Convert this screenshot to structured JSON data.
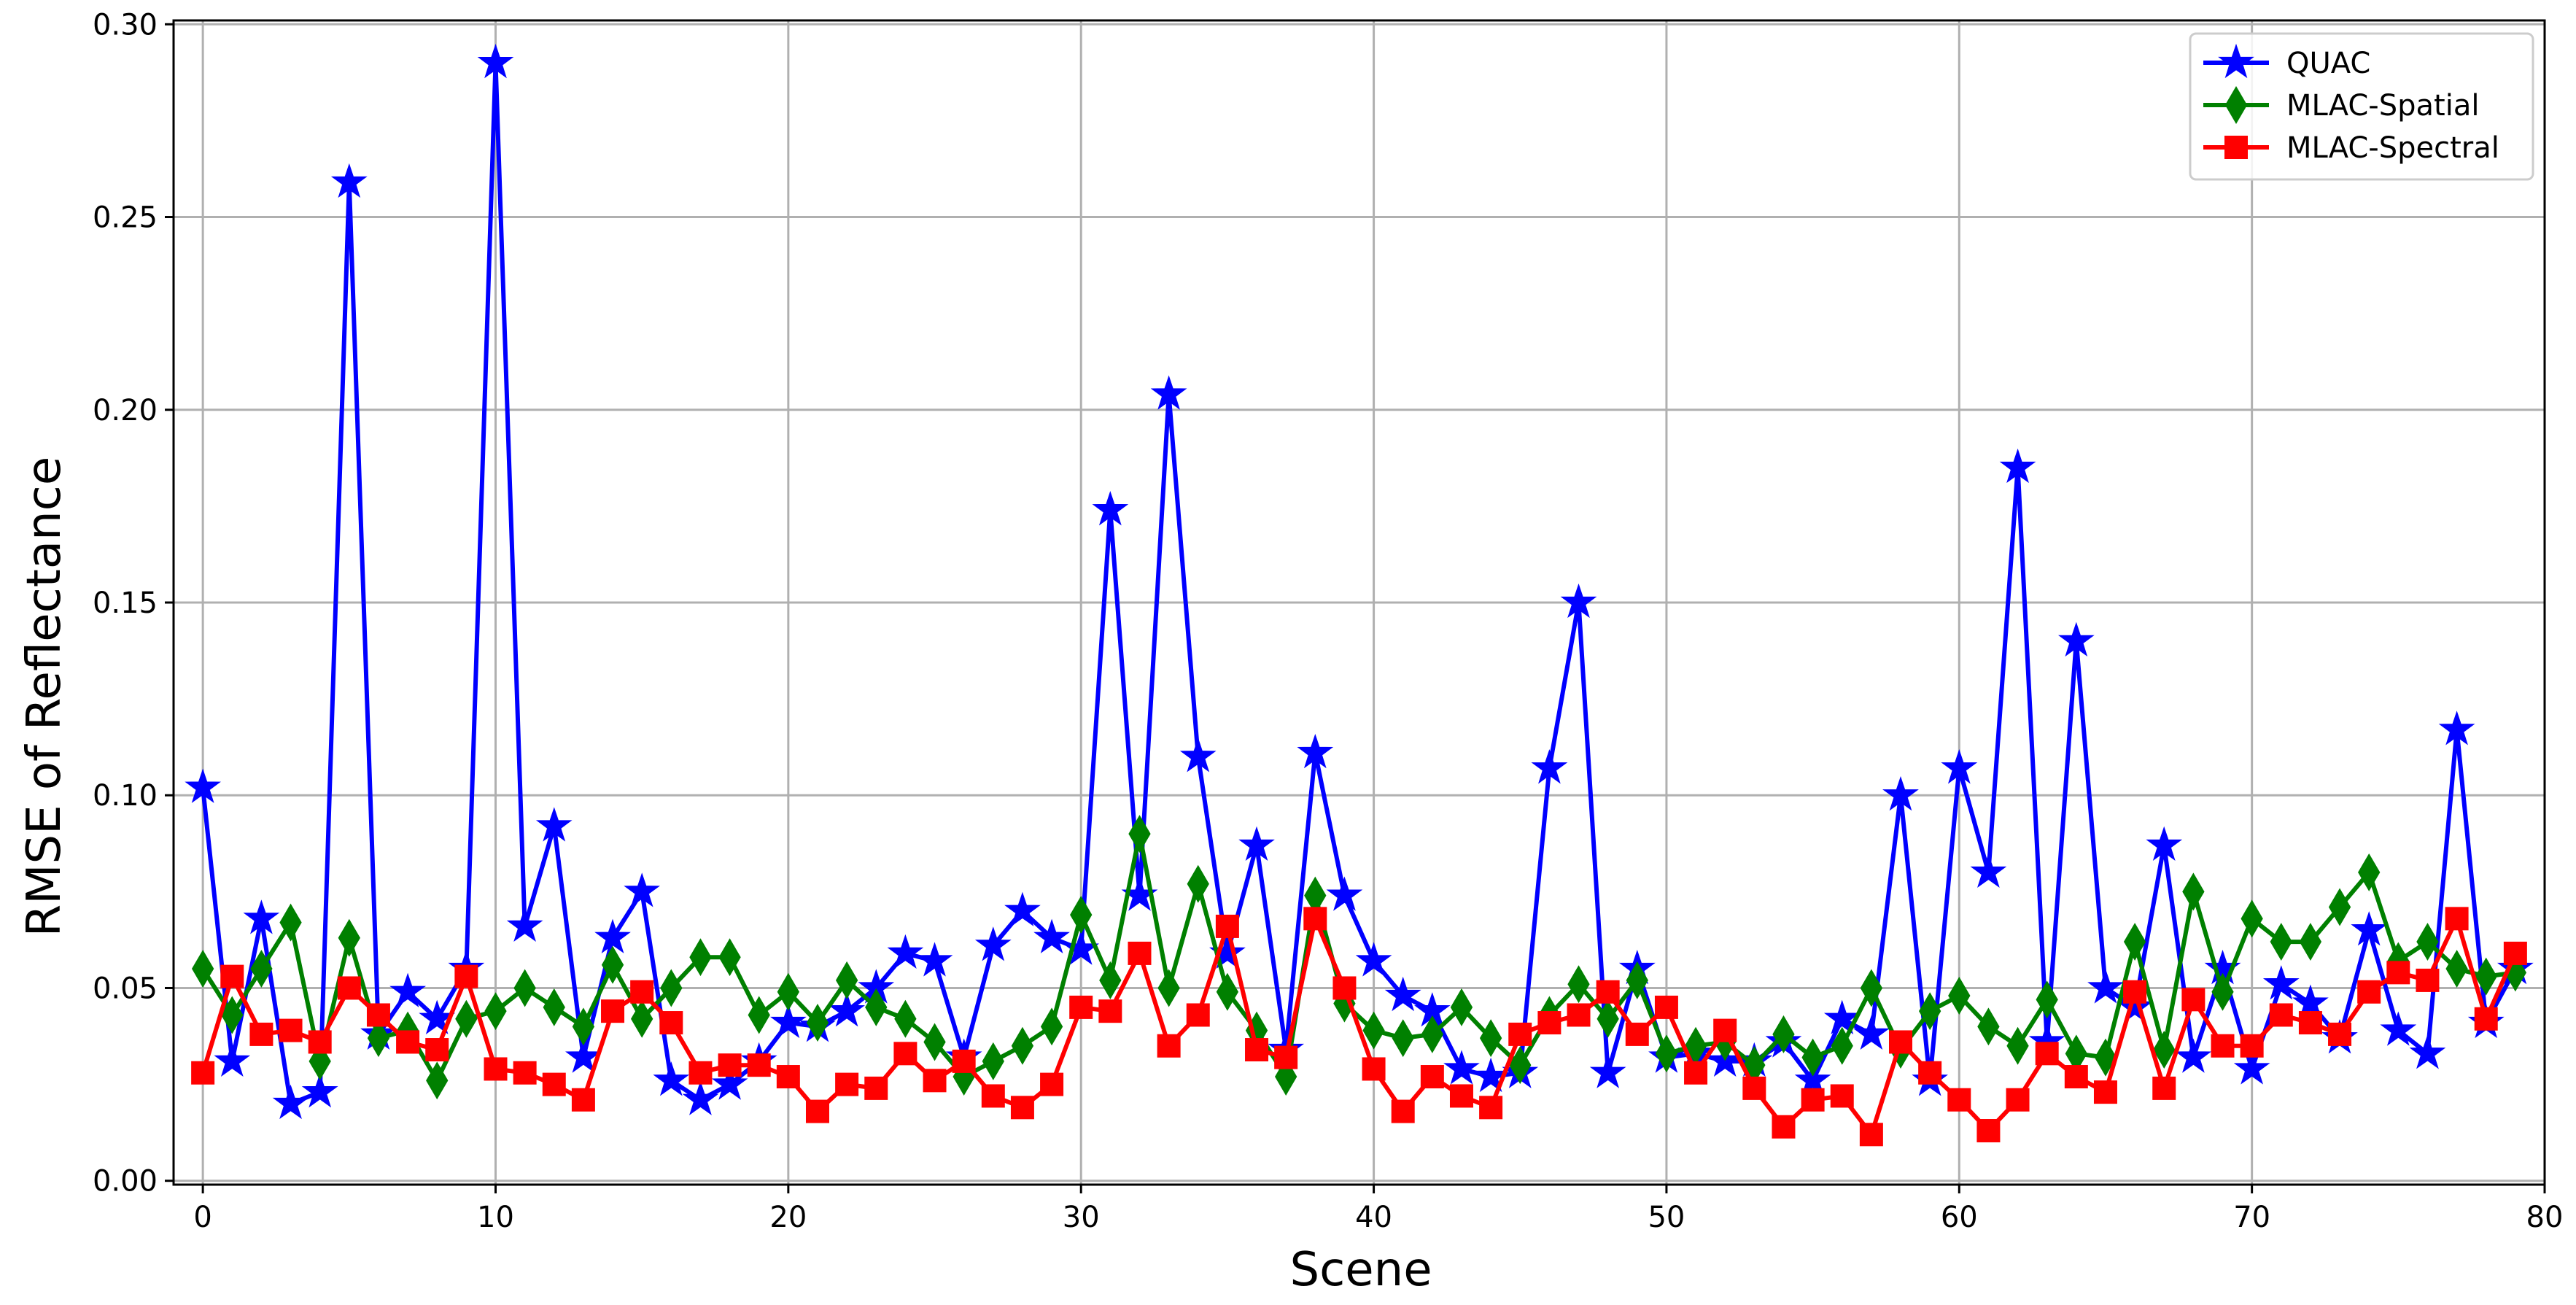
{
  "chart_data": {
    "type": "line",
    "xlabel": "Scene",
    "ylabel": "RMSE of Reflectance",
    "xlim": [
      -1,
      80
    ],
    "ylim": [
      -0.001,
      0.301
    ],
    "xticks": [
      "0",
      "10",
      "20",
      "30",
      "40",
      "50",
      "60",
      "70",
      "80"
    ],
    "yticks": [
      "0.00",
      "0.05",
      "0.10",
      "0.15",
      "0.20",
      "0.25",
      "0.30"
    ],
    "grid": true,
    "legend_position": "top-right",
    "x": [
      0,
      1,
      2,
      3,
      4,
      5,
      6,
      7,
      8,
      9,
      10,
      11,
      12,
      13,
      14,
      15,
      16,
      17,
      18,
      19,
      20,
      21,
      22,
      23,
      24,
      25,
      26,
      27,
      28,
      29,
      30,
      31,
      32,
      33,
      34,
      35,
      36,
      37,
      38,
      39,
      40,
      41,
      42,
      43,
      44,
      45,
      46,
      47,
      48,
      49,
      50,
      51,
      52,
      53,
      54,
      55,
      56,
      57,
      58,
      59,
      60,
      61,
      62,
      63,
      64,
      65,
      66,
      67,
      68,
      69,
      70,
      71,
      72,
      73,
      74,
      75,
      76,
      77,
      78,
      79
    ],
    "series": [
      {
        "name": "QUAC",
        "color": "#0000ff",
        "marker": "star",
        "values": [
          0.102,
          0.031,
          0.068,
          0.02,
          0.023,
          0.259,
          0.038,
          0.049,
          0.042,
          0.055,
          0.29,
          0.066,
          0.092,
          0.032,
          0.063,
          0.075,
          0.026,
          0.021,
          0.025,
          0.031,
          0.041,
          0.04,
          0.044,
          0.05,
          0.059,
          0.057,
          0.032,
          0.061,
          0.07,
          0.063,
          0.06,
          0.174,
          0.074,
          0.204,
          0.11,
          0.059,
          0.087,
          0.034,
          0.111,
          0.074,
          0.057,
          0.048,
          0.044,
          0.029,
          0.027,
          0.028,
          0.107,
          0.15,
          0.028,
          0.055,
          0.032,
          0.033,
          0.031,
          0.031,
          0.036,
          0.026,
          0.042,
          0.038,
          0.1,
          0.026,
          0.107,
          0.08,
          0.185,
          0.036,
          0.14,
          0.05,
          0.045,
          0.087,
          0.032,
          0.055,
          0.029,
          0.051,
          0.046,
          0.037,
          0.065,
          0.039,
          0.033,
          0.117,
          0.041,
          0.055
        ]
      },
      {
        "name": "MLAC-Spatial",
        "color": "#008000",
        "marker": "diamond",
        "values": [
          0.055,
          0.043,
          0.055,
          0.067,
          0.031,
          0.063,
          0.037,
          0.039,
          0.026,
          0.042,
          0.044,
          0.05,
          0.045,
          0.04,
          0.056,
          0.042,
          0.05,
          0.058,
          0.058,
          0.043,
          0.049,
          0.041,
          0.052,
          0.045,
          0.042,
          0.036,
          0.027,
          0.031,
          0.035,
          0.04,
          0.069,
          0.052,
          0.09,
          0.05,
          0.077,
          0.049,
          0.039,
          0.027,
          0.074,
          0.046,
          0.039,
          0.037,
          0.038,
          0.045,
          0.037,
          0.03,
          0.043,
          0.051,
          0.042,
          0.052,
          0.033,
          0.035,
          0.036,
          0.03,
          0.038,
          0.032,
          0.035,
          0.05,
          0.034,
          0.044,
          0.048,
          0.04,
          0.035,
          0.047,
          0.033,
          0.032,
          0.062,
          0.034,
          0.075,
          0.049,
          0.068,
          0.062,
          0.062,
          0.071,
          0.08,
          0.057,
          0.062,
          0.055,
          0.053,
          0.054
        ]
      },
      {
        "name": "MLAC-Spectral",
        "color": "#ff0000",
        "marker": "square",
        "values": [
          0.028,
          0.053,
          0.038,
          0.039,
          0.036,
          0.05,
          0.043,
          0.036,
          0.034,
          0.053,
          0.029,
          0.028,
          0.025,
          0.021,
          0.044,
          0.049,
          0.041,
          0.028,
          0.03,
          0.03,
          0.027,
          0.018,
          0.025,
          0.024,
          0.033,
          0.026,
          0.031,
          0.022,
          0.019,
          0.025,
          0.045,
          0.044,
          0.059,
          0.035,
          0.043,
          0.066,
          0.034,
          0.032,
          0.068,
          0.05,
          0.029,
          0.018,
          0.027,
          0.022,
          0.019,
          0.038,
          0.041,
          0.043,
          0.049,
          0.038,
          0.045,
          0.028,
          0.039,
          0.024,
          0.014,
          0.021,
          0.022,
          0.012,
          0.036,
          0.028,
          0.021,
          0.013,
          0.021,
          0.033,
          0.027,
          0.023,
          0.049,
          0.024,
          0.047,
          0.035,
          0.035,
          0.043,
          0.041,
          0.038,
          0.049,
          0.054,
          0.052,
          0.068,
          0.042,
          0.059
        ]
      }
    ]
  }
}
